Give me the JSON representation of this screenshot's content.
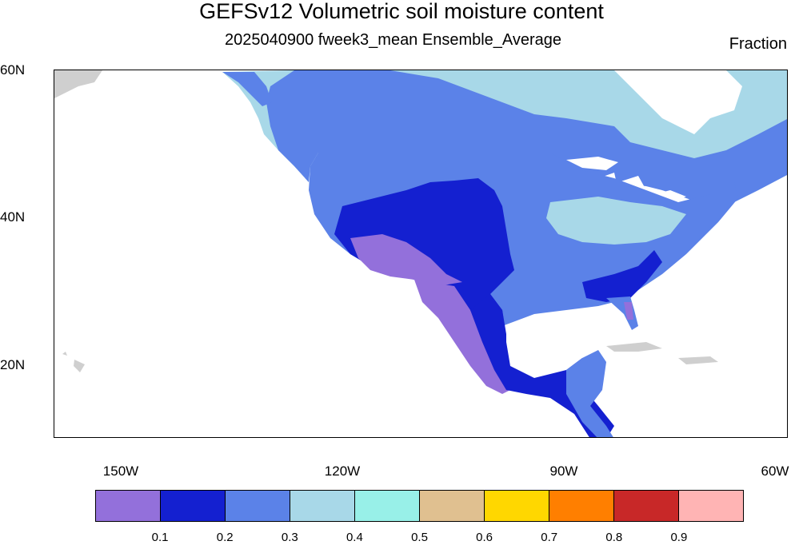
{
  "title": "GEFSv12 Volumetric soil moisture content",
  "subtitle": "2025040900 fweek3_mean Ensemble_Average",
  "units": "Fraction",
  "lat_labels": [
    "60N",
    "40N",
    "20N"
  ],
  "lon_labels": [
    "150W",
    "120W",
    "90W",
    "60W"
  ],
  "colorbar": {
    "colors": [
      "#9370db",
      "#1420d0",
      "#5b82e8",
      "#a8d8e8",
      "#98f0e8",
      "#e0c090",
      "#ffd700",
      "#ff7f00",
      "#c82828",
      "#ffb4b4"
    ],
    "labels": [
      "0.1",
      "0.2",
      "0.3",
      "0.4",
      "0.5",
      "0.6",
      "0.7",
      "0.8",
      "0.9"
    ]
  },
  "map": {
    "missing_color": "#cfcfcf",
    "coast_color": "#000000"
  }
}
